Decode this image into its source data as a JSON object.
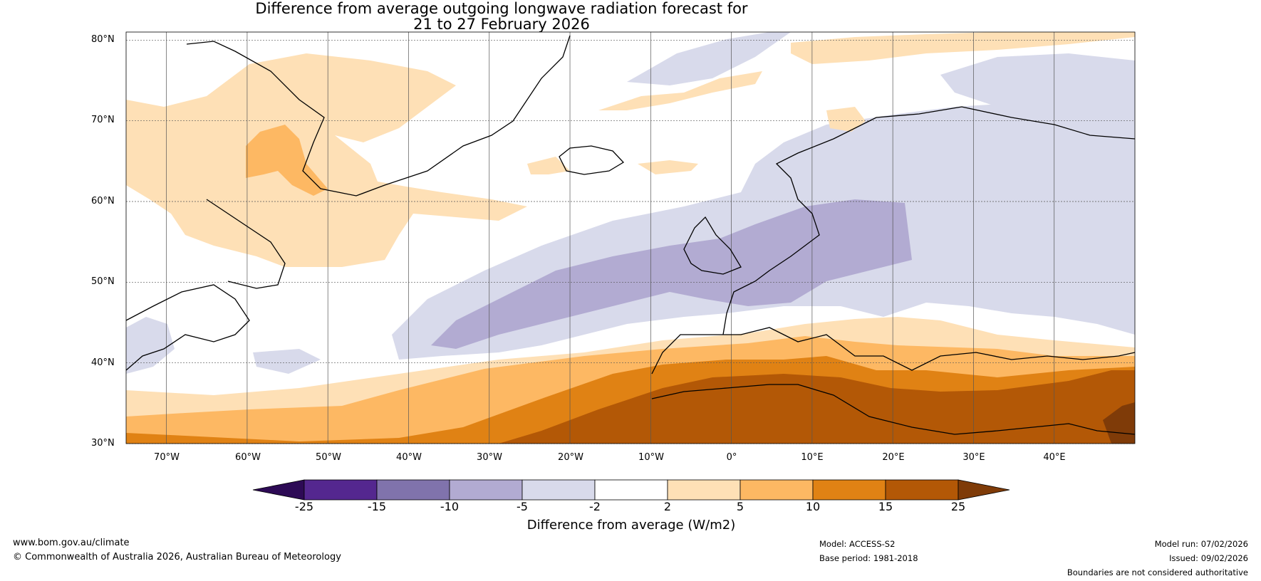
{
  "title": {
    "line1": "Difference from average outgoing longwave radiation forecast for",
    "line2": "21 to 27 February 2026"
  },
  "map": {
    "lat_labels": [
      "80°N",
      "70°N",
      "60°N",
      "50°N",
      "40°N",
      "30°N"
    ],
    "lon_labels": [
      "70°W",
      "60°W",
      "50°W",
      "40°W",
      "30°W",
      "20°W",
      "10°W",
      "0°",
      "10°E",
      "20°E",
      "30°E",
      "40°E"
    ],
    "extent": {
      "lon_min": -75,
      "lon_max": 50,
      "lat_min": 30,
      "lat_max": 81
    }
  },
  "colorbar": {
    "ticks": [
      "-25",
      "-15",
      "-10",
      "-5",
      "-2",
      "2",
      "5",
      "10",
      "15",
      "25"
    ],
    "colors": [
      "#2d0a55",
      "#54278f",
      "#8073ac",
      "#b2abd2",
      "#d8daeb",
      "#ffffff",
      "#fee0b6",
      "#fdb863",
      "#e08214",
      "#b35806",
      "#7f3b08"
    ],
    "label": "Difference from average (W/m2)"
  },
  "footer": {
    "website": "www.bom.gov.au/climate",
    "copyright": "© Commonwealth of Australia 2026, Australian Bureau of Meteorology",
    "model": "Model: ACCESS-S2",
    "base_period": "Base period: 1981-2018",
    "model_run": "Model run: 07/02/2026",
    "issued": "Issued: 09/02/2026",
    "disclaimer": "Boundaries are not considered authoritative"
  }
}
